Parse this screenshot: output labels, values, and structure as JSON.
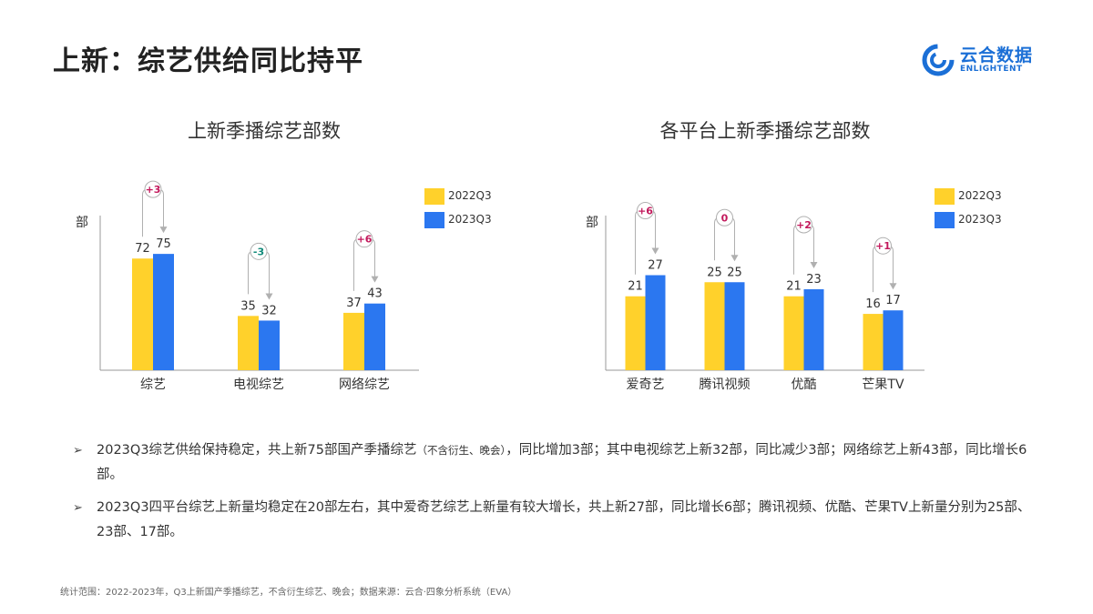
{
  "page": {
    "title": "上新：综艺供给同比持平",
    "logo_cn": "云合数据",
    "logo_en": "ENLIGHTENT",
    "accent": "#1b6fd6"
  },
  "legend_left": [
    "2022Q3",
    "2023Q3"
  ],
  "legend_right": [
    "2022Q3",
    "2023Q3"
  ],
  "bullets": [
    {
      "main1": "2023Q3综艺供给保持稳定，共上新75部国产季播综艺",
      "small": "（不含衍生、晚会）",
      "main2": "，同比增加3部；其中电视综艺上新32部，同比减少3部；网络综艺上新43部，同比增长6部。"
    },
    {
      "main1": "2023Q3四平台综艺上新量均稳定在20部左右，其中爱奇艺综艺上新量有较大增长，共上新27部，同比增长6部；腾讯视频、优酷、芒果TV上新量分别为25部、23部、17部。",
      "small": "",
      "main2": ""
    }
  ],
  "footnote": "统计范围：2022-2023年，Q3上新国产季播综艺，不含衍生综艺、晚会；数据来源：云合·四象分析系统（EVA）",
  "colors": {
    "series_2022": "#ffd12b",
    "series_2023": "#2b77f0",
    "delta_pos": "#c2185b",
    "delta_neg": "#128a7a",
    "axis": "#999999",
    "bracket": "#b0b0b0"
  },
  "chart_data": [
    {
      "type": "bar",
      "title": "上新季播综艺部数",
      "ylabel": "部",
      "categories": [
        "综艺",
        "电视综艺",
        "网络综艺"
      ],
      "series": [
        {
          "name": "2022Q3",
          "values": [
            72,
            35,
            37
          ]
        },
        {
          "name": "2023Q3",
          "values": [
            75,
            32,
            43
          ]
        }
      ],
      "deltas": [
        "+3",
        "-3",
        "+6"
      ],
      "ylim": [
        0,
        100
      ],
      "grid": false,
      "legend": "top-right"
    },
    {
      "type": "bar",
      "title": "各平台上新季播综艺部数",
      "ylabel": "部",
      "categories": [
        "爱奇艺",
        "腾讯视频",
        "优酷",
        "芒果TV"
      ],
      "series": [
        {
          "name": "2022Q3",
          "values": [
            21,
            25,
            21,
            16
          ]
        },
        {
          "name": "2023Q3",
          "values": [
            27,
            25,
            23,
            17
          ]
        }
      ],
      "deltas": [
        "+6",
        "0",
        "+2",
        "+1"
      ],
      "ylim": [
        0,
        35
      ],
      "grid": false,
      "legend": "top-right"
    }
  ]
}
